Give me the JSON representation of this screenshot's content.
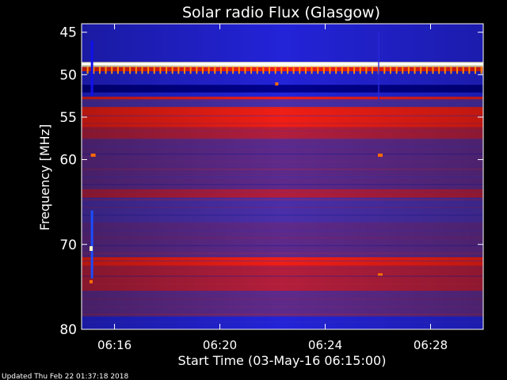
{
  "chart_data": {
    "type": "heatmap",
    "title": "Solar radio Flux (Glasgow)",
    "xlabel": "Start Time (03-May-16 06:15:00)",
    "ylabel": "Frequency [MHz]",
    "x_ticks": [
      "06:16",
      "06:20",
      "06:24",
      "06:28"
    ],
    "x_tick_minutes": [
      1,
      5,
      9,
      13
    ],
    "x_range_minutes": [
      -0.25,
      15
    ],
    "y_ticks": [
      45,
      50,
      55,
      60,
      70,
      80
    ],
    "y_range": [
      44,
      80
    ],
    "frequency_bands": [
      {
        "from": 44.0,
        "to": 44.8,
        "intensity": "low"
      },
      {
        "from": 44.8,
        "to": 48.5,
        "intensity": "low"
      },
      {
        "from": 48.5,
        "to": 49.1,
        "intensity": "saturated"
      },
      {
        "from": 49.1,
        "to": 49.6,
        "intensity": "high"
      },
      {
        "from": 49.6,
        "to": 51.2,
        "intensity": "low"
      },
      {
        "from": 51.2,
        "to": 52.1,
        "intensity": "very-low"
      },
      {
        "from": 52.1,
        "to": 52.6,
        "intensity": "low"
      },
      {
        "from": 52.6,
        "to": 52.9,
        "intensity": "high"
      },
      {
        "from": 52.9,
        "to": 53.8,
        "intensity": "low-medium"
      },
      {
        "from": 53.8,
        "to": 56.2,
        "intensity": "high"
      },
      {
        "from": 56.2,
        "to": 57.5,
        "intensity": "medium-high"
      },
      {
        "from": 57.5,
        "to": 63.5,
        "intensity": "medium"
      },
      {
        "from": 63.5,
        "to": 64.5,
        "intensity": "medium-high"
      },
      {
        "from": 64.5,
        "to": 67.5,
        "intensity": "low-medium"
      },
      {
        "from": 67.5,
        "to": 71.5,
        "intensity": "medium"
      },
      {
        "from": 71.5,
        "to": 72.5,
        "intensity": "high"
      },
      {
        "from": 72.5,
        "to": 75.5,
        "intensity": "medium-high"
      },
      {
        "from": 75.5,
        "to": 78.5,
        "intensity": "medium"
      },
      {
        "from": 78.5,
        "to": 80.0,
        "intensity": "low"
      }
    ],
    "colorscale": {
      "very-low": "#00008c",
      "low": "#2323d8",
      "low-medium": "#4a2fa8",
      "medium": "#5e2a8a",
      "medium-high": "#b21e3c",
      "high": "#f01e14",
      "saturated": "#fff6c8"
    },
    "grid": false,
    "legend": "none"
  },
  "footer": {
    "updated": "Updated Thu Feb 22 01:37:18 2018"
  }
}
